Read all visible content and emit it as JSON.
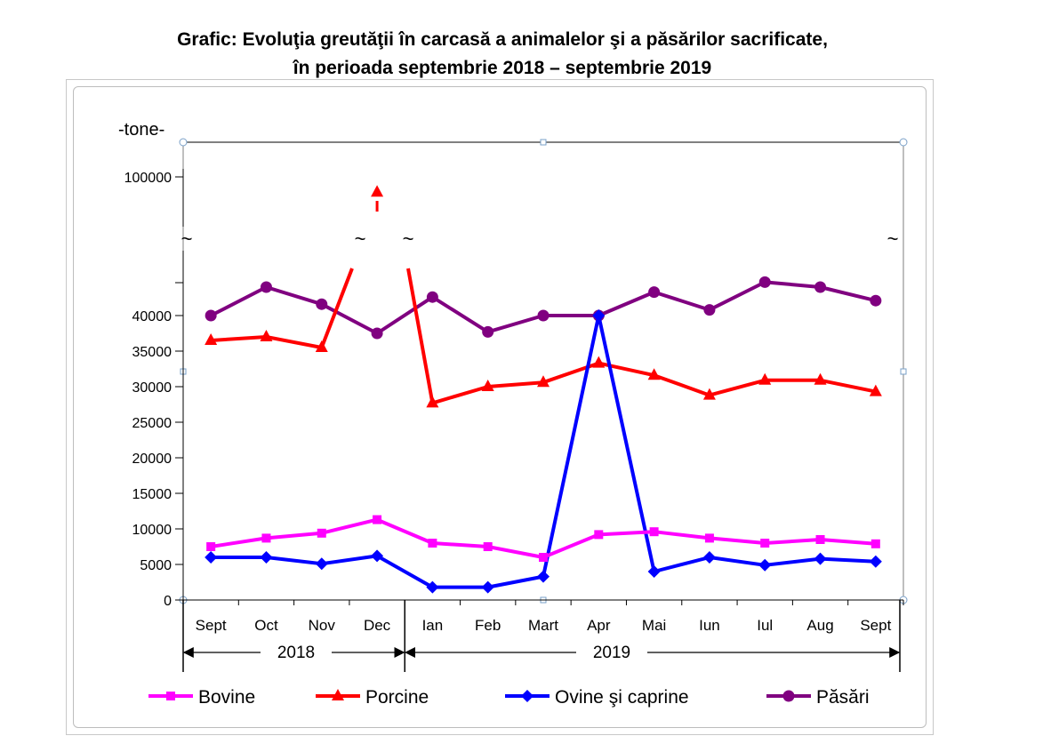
{
  "title_line1": "Grafic: Evoluţia greutăţii în carcasă a animalelor şi a păsărilor sacrificate,",
  "title_line2": "în perioada septembrie 2018 – septembrie 2019",
  "chart_data": {
    "type": "line",
    "ylabel": "-tone-",
    "y_ticks": [
      "0",
      "5000",
      "10000",
      "15000",
      "20000",
      "25000",
      "30000",
      "35000",
      "40000",
      "100000"
    ],
    "axis_break_mark": "~",
    "categories": [
      "Sept",
      "Oct",
      "Nov",
      "Dec",
      "Ian",
      "Feb",
      "Mart",
      "Apr",
      "Mai",
      "Iun",
      "Iul",
      "Aug",
      "Sept"
    ],
    "year_groups": [
      {
        "label": "2018",
        "months": 4
      },
      {
        "label": "2019",
        "months": 9
      }
    ],
    "series": [
      {
        "name": "Bovine",
        "color": "#ff00ff",
        "marker": "square",
        "values": [
          7500,
          8700,
          9400,
          11300,
          8000,
          7500,
          6000,
          9200,
          9600,
          8700,
          8000,
          8500,
          7900
        ]
      },
      {
        "name": "Porcine",
        "color": "#ff0000",
        "marker": "triangle",
        "values": [
          36500,
          37000,
          35500,
          92000,
          27700,
          30000,
          30600,
          33300,
          31600,
          28800,
          30900,
          30900,
          29300
        ]
      },
      {
        "name": "Ovine şi caprine",
        "color": "#0000ff",
        "marker": "diamond",
        "values": [
          6000,
          6000,
          5100,
          6200,
          1800,
          1800,
          3300,
          40000,
          4000,
          6000,
          4900,
          5800,
          5400
        ]
      },
      {
        "name": "Păsări",
        "color": "#800080",
        "marker": "circle",
        "values": [
          40000,
          44000,
          41600,
          37500,
          42600,
          37700,
          40000,
          40000,
          43300,
          40800,
          45300,
          44000,
          42100
        ]
      }
    ],
    "legend_position": "bottom",
    "grid": false
  }
}
